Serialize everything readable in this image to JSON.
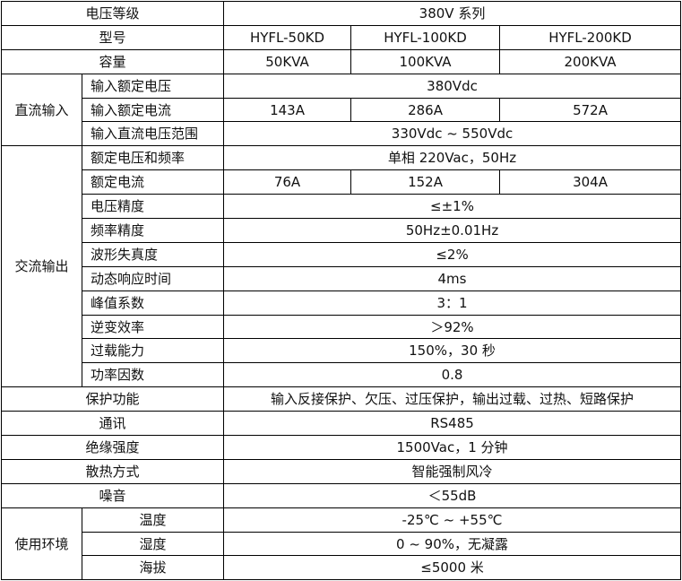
{
  "header": {
    "voltage_class_label": "电压等级",
    "voltage_class_value": "380V 系列",
    "model_label": "型号",
    "models": [
      "HYFL-50KD",
      "HYFL-100KD",
      "HYFL-200KD"
    ],
    "capacity_label": "容量",
    "capacities": [
      "50KVA",
      "100KVA",
      "200KVA"
    ]
  },
  "dc_input": {
    "group": "直流输入",
    "rated_voltage_label": "输入额定电压",
    "rated_voltage": "380Vdc",
    "rated_current_label": "输入额定电流",
    "rated_currents": [
      "143A",
      "286A",
      "572A"
    ],
    "voltage_range_label": "输入直流电压范围",
    "voltage_range": "330Vdc ~ 550Vdc"
  },
  "ac_output": {
    "group": "交流输出",
    "voltage_freq_label": "额定电压和频率",
    "voltage_freq": "单相 220Vac，50Hz",
    "rated_current_label": "额定电流",
    "rated_currents": [
      "76A",
      "152A",
      "304A"
    ],
    "rows": [
      {
        "label": "电压精度",
        "value": "≤±1%"
      },
      {
        "label": "频率精度",
        "value": "50Hz±0.01Hz"
      },
      {
        "label": "波形失真度",
        "value": "≤2%"
      },
      {
        "label": "动态响应时间",
        "value": "4ms"
      },
      {
        "label": "峰值系数",
        "value": "3：1"
      },
      {
        "label": "逆变效率",
        "value": "＞92%"
      },
      {
        "label": "过载能力",
        "value": "150%，30 秒"
      },
      {
        "label": "功率因数",
        "value": "0.8"
      }
    ]
  },
  "general": [
    {
      "label": "保护功能",
      "value": "输入反接保护、欠压、过压保护，输出过载、过热、短路保护"
    },
    {
      "label": "通讯",
      "value": "RS485"
    },
    {
      "label": "绝缘强度",
      "value": "1500Vac，1 分钟"
    },
    {
      "label": "散热方式",
      "value": "智能强制风冷"
    },
    {
      "label": "噪音",
      "value": "＜55dB"
    }
  ],
  "environment": {
    "group": "使用环境",
    "rows": [
      {
        "label": "温度",
        "value": "-25℃ ~ +55℃"
      },
      {
        "label": "湿度",
        "value": "0 ~ 90%，无凝露"
      },
      {
        "label": "海拔",
        "value": "≤5000 米"
      }
    ]
  }
}
